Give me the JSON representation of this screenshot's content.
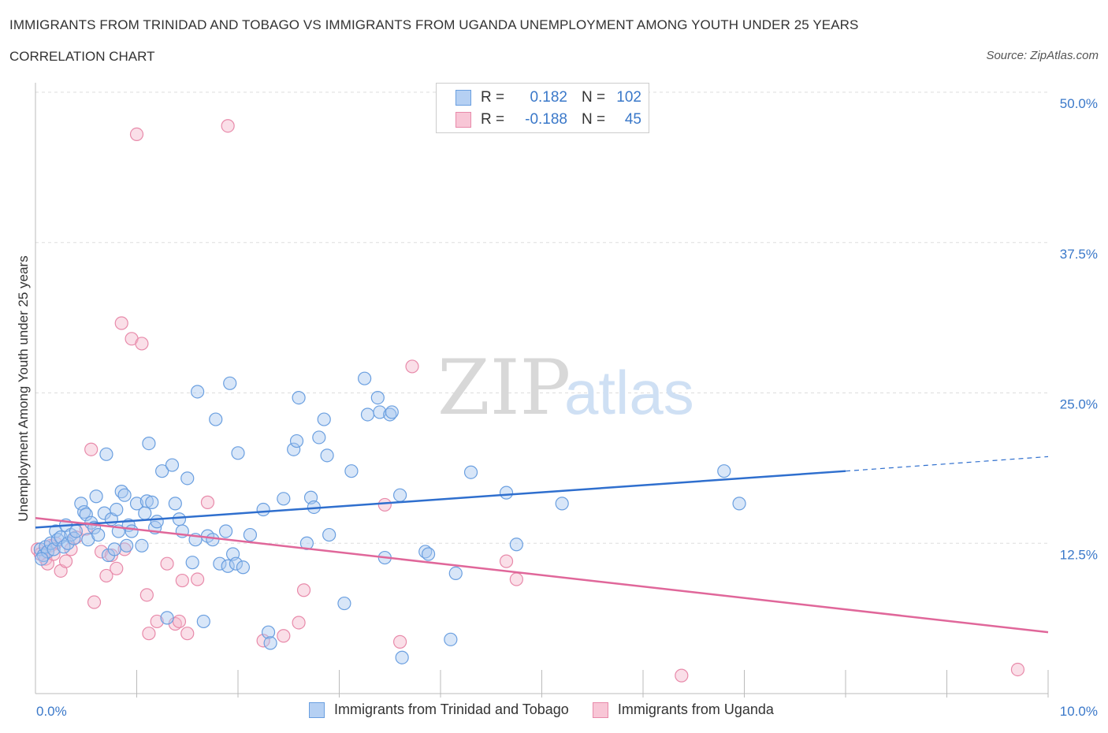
{
  "title": "IMMIGRANTS FROM TRINIDAD AND TOBAGO VS IMMIGRANTS FROM UGANDA UNEMPLOYMENT AMONG YOUTH UNDER 25 YEARS",
  "subtitle": "CORRELATION CHART",
  "source": "Source: ZipAtlas.com",
  "watermark": {
    "zip": "ZIP",
    "atlas": "atlas"
  },
  "legend": {
    "rows": [
      {
        "r_label": "R =",
        "r_value": "0.182",
        "n_label": "N =",
        "n_value": "102"
      },
      {
        "r_label": "R =",
        "r_value": "-0.188",
        "n_label": "N =",
        "n_value": "45"
      }
    ]
  },
  "colors": {
    "blue_fill": "#a9c8f0",
    "blue_stroke": "#6a9fe0",
    "blue_line": "#2f6fce",
    "pink_fill": "#f5b8cc",
    "pink_stroke": "#e88aaa",
    "pink_line": "#e0679a",
    "grid": "#dddddd",
    "tick_label": "#3a78c9"
  },
  "chart_data": {
    "type": "scatter",
    "title": "IMMIGRANTS FROM TRINIDAD AND TOBAGO VS IMMIGRANTS FROM UGANDA UNEMPLOYMENT AMONG YOUTH UNDER 25 YEARS",
    "xlabel": "",
    "ylabel": "Unemployment Among Youth under 25 years",
    "xlim": [
      0,
      10
    ],
    "ylim": [
      0,
      50
    ],
    "x_tick_labels": [
      "0.0%",
      "10.0%"
    ],
    "y_ticks": [
      12.5,
      25.0,
      37.5,
      50.0
    ],
    "y_tick_labels": [
      "12.5%",
      "25.0%",
      "37.5%",
      "50.0%"
    ],
    "grid": true,
    "series": [
      {
        "name": "Immigrants from Trinidad and Tobago",
        "color": "#6a9fe0",
        "points": [
          [
            0.05,
            12.0
          ],
          [
            0.08,
            11.5
          ],
          [
            0.1,
            12.2
          ],
          [
            0.12,
            11.8
          ],
          [
            0.15,
            12.5
          ],
          [
            0.18,
            12.0
          ],
          [
            0.2,
            13.5
          ],
          [
            0.22,
            12.8
          ],
          [
            0.25,
            13.0
          ],
          [
            0.28,
            12.2
          ],
          [
            0.3,
            14.0
          ],
          [
            0.32,
            12.5
          ],
          [
            0.35,
            13.2
          ],
          [
            0.38,
            12.9
          ],
          [
            0.4,
            13.5
          ],
          [
            0.45,
            15.8
          ],
          [
            0.48,
            15.1
          ],
          [
            0.5,
            14.9
          ],
          [
            0.52,
            12.8
          ],
          [
            0.55,
            14.2
          ],
          [
            0.58,
            13.8
          ],
          [
            0.6,
            16.4
          ],
          [
            0.62,
            13.2
          ],
          [
            0.68,
            15.0
          ],
          [
            0.7,
            19.9
          ],
          [
            0.72,
            11.5
          ],
          [
            0.75,
            14.5
          ],
          [
            0.78,
            12.0
          ],
          [
            0.8,
            15.3
          ],
          [
            0.82,
            13.5
          ],
          [
            0.85,
            16.8
          ],
          [
            0.88,
            16.5
          ],
          [
            0.9,
            12.3
          ],
          [
            0.92,
            14.0
          ],
          [
            0.95,
            13.5
          ],
          [
            1.0,
            15.8
          ],
          [
            1.05,
            12.3
          ],
          [
            1.08,
            15.0
          ],
          [
            1.1,
            16.0
          ],
          [
            1.12,
            20.8
          ],
          [
            1.15,
            15.9
          ],
          [
            1.18,
            13.8
          ],
          [
            1.2,
            14.3
          ],
          [
            1.25,
            18.5
          ],
          [
            1.3,
            6.3
          ],
          [
            1.35,
            19.0
          ],
          [
            1.38,
            15.8
          ],
          [
            1.42,
            14.5
          ],
          [
            1.45,
            13.5
          ],
          [
            1.5,
            17.9
          ],
          [
            1.55,
            10.9
          ],
          [
            1.58,
            12.8
          ],
          [
            1.6,
            25.1
          ],
          [
            1.66,
            6.0
          ],
          [
            1.7,
            13.1
          ],
          [
            1.75,
            12.8
          ],
          [
            1.78,
            22.8
          ],
          [
            1.82,
            10.8
          ],
          [
            1.88,
            13.5
          ],
          [
            1.9,
            10.6
          ],
          [
            1.92,
            25.8
          ],
          [
            1.95,
            11.6
          ],
          [
            1.98,
            10.8
          ],
          [
            2.0,
            20.0
          ],
          [
            2.05,
            10.5
          ],
          [
            2.12,
            13.2
          ],
          [
            2.25,
            15.3
          ],
          [
            2.3,
            5.1
          ],
          [
            2.32,
            4.2
          ],
          [
            2.45,
            16.2
          ],
          [
            2.55,
            20.3
          ],
          [
            2.58,
            21.0
          ],
          [
            2.6,
            24.6
          ],
          [
            2.68,
            12.5
          ],
          [
            2.72,
            16.3
          ],
          [
            2.75,
            15.5
          ],
          [
            2.8,
            21.3
          ],
          [
            2.85,
            22.8
          ],
          [
            2.88,
            19.8
          ],
          [
            2.9,
            13.2
          ],
          [
            3.05,
            7.5
          ],
          [
            3.12,
            18.5
          ],
          [
            3.25,
            26.2
          ],
          [
            3.28,
            23.2
          ],
          [
            3.38,
            24.6
          ],
          [
            3.4,
            23.4
          ],
          [
            3.45,
            11.3
          ],
          [
            3.5,
            23.2
          ],
          [
            3.52,
            23.4
          ],
          [
            3.6,
            16.5
          ],
          [
            3.62,
            3.0
          ],
          [
            3.85,
            11.8
          ],
          [
            3.88,
            11.6
          ],
          [
            4.1,
            4.5
          ],
          [
            4.15,
            10.0
          ],
          [
            4.3,
            18.4
          ],
          [
            4.65,
            16.7
          ],
          [
            4.75,
            12.4
          ],
          [
            5.2,
            15.8
          ],
          [
            6.8,
            18.5
          ],
          [
            6.95,
            15.8
          ],
          [
            0.06,
            11.2
          ]
        ]
      },
      {
        "name": "Immigrants from Uganda",
        "color": "#e88aaa",
        "points": [
          [
            0.02,
            12.0
          ],
          [
            0.05,
            11.6
          ],
          [
            0.1,
            11.2
          ],
          [
            0.12,
            10.8
          ],
          [
            0.15,
            12.3
          ],
          [
            0.2,
            12.5
          ],
          [
            0.25,
            10.2
          ],
          [
            0.3,
            11.0
          ],
          [
            0.35,
            12.0
          ],
          [
            0.4,
            13.0
          ],
          [
            0.5,
            13.7
          ],
          [
            0.55,
            20.3
          ],
          [
            0.58,
            7.6
          ],
          [
            0.65,
            11.8
          ],
          [
            0.7,
            9.8
          ],
          [
            0.75,
            11.5
          ],
          [
            0.8,
            10.4
          ],
          [
            0.85,
            30.8
          ],
          [
            0.88,
            12.0
          ],
          [
            0.95,
            29.5
          ],
          [
            1.0,
            46.5
          ],
          [
            1.05,
            29.1
          ],
          [
            1.1,
            8.2
          ],
          [
            1.12,
            5.0
          ],
          [
            1.2,
            6.0
          ],
          [
            1.3,
            10.8
          ],
          [
            1.38,
            5.8
          ],
          [
            1.42,
            6.0
          ],
          [
            1.45,
            9.4
          ],
          [
            1.5,
            5.0
          ],
          [
            1.6,
            9.5
          ],
          [
            1.7,
            15.9
          ],
          [
            1.9,
            47.2
          ],
          [
            2.25,
            4.4
          ],
          [
            2.45,
            4.8
          ],
          [
            2.6,
            5.9
          ],
          [
            2.65,
            8.6
          ],
          [
            3.45,
            15.7
          ],
          [
            3.6,
            4.3
          ],
          [
            3.72,
            27.2
          ],
          [
            4.65,
            11.0
          ],
          [
            4.75,
            9.5
          ],
          [
            6.38,
            1.5
          ],
          [
            9.7,
            2.0
          ],
          [
            0.18,
            11.6
          ]
        ]
      }
    ],
    "trend_lines": [
      {
        "series": "Immigrants from Trinidad and Tobago",
        "solid_from": [
          0.0,
          13.8
        ],
        "solid_to": [
          8.0,
          18.5
        ],
        "dashed_to": [
          10.0,
          19.7
        ]
      },
      {
        "series": "Immigrants from Uganda",
        "from": [
          0.0,
          14.6
        ],
        "to": [
          10.0,
          5.1
        ]
      }
    ]
  }
}
